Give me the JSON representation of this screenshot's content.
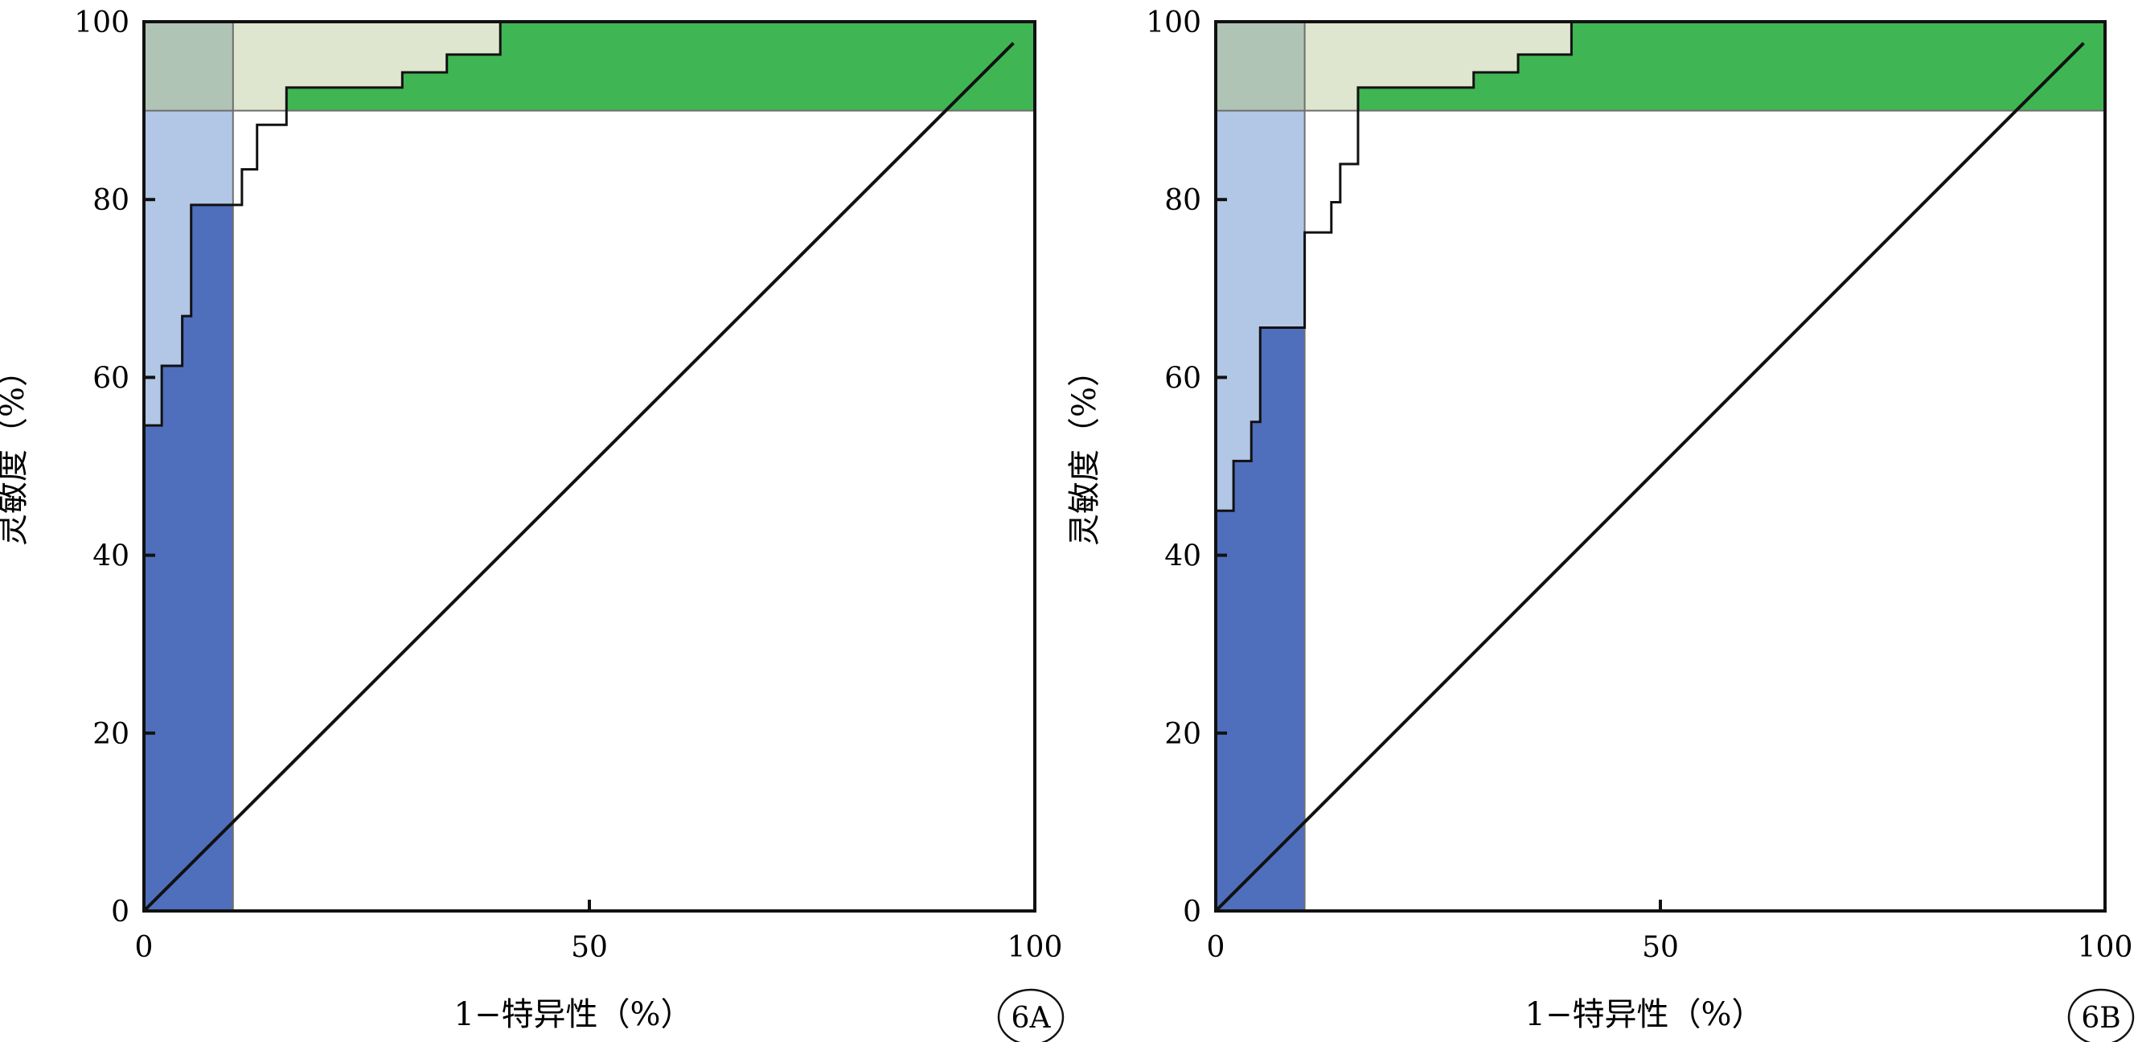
{
  "chart_data": [
    {
      "type": "line",
      "panel_label": "6A",
      "xlabel": "1−特异性（%）",
      "ylabel": "灵敏度（%）",
      "xlim": [
        0,
        100
      ],
      "ylim": [
        0,
        100
      ],
      "x_ticks": [
        0,
        50,
        100
      ],
      "y_ticks": [
        0,
        20,
        40,
        60,
        80,
        100
      ],
      "grid": false,
      "regions": [
        {
          "name": "specificity-band",
          "x_range": [
            0,
            10
          ],
          "y_range": [
            0,
            100
          ],
          "color_below": "#4f6fbc",
          "color_above": "#b2c6e6"
        },
        {
          "name": "sensitivity-band",
          "x_range": [
            0,
            100
          ],
          "y_range": [
            90,
            100
          ],
          "color_above": "#40b554",
          "color_below": "#dfe6cf"
        },
        {
          "name": "overlap",
          "x_range": [
            0,
            10
          ],
          "y_range": [
            90,
            100
          ],
          "color": "#b0c4b6"
        }
      ],
      "diagonal": {
        "x": [
          0,
          97.6
        ],
        "y": [
          0,
          97.6
        ]
      },
      "series": [
        {
          "x": [
            0,
            2,
            2,
            4.3,
            4.3,
            5.3,
            5.3,
            10,
            10,
            11,
            11,
            12.7,
            12.7,
            16,
            16,
            29,
            29,
            34,
            34,
            40,
            40,
            100
          ],
          "y": [
            54.6,
            54.6,
            61.3,
            61.3,
            66.9,
            66.9,
            79.4,
            79.4,
            79.4,
            79.4,
            83.4,
            83.4,
            88.4,
            88.4,
            92.6,
            92.6,
            94.3,
            94.3,
            96.3,
            96.3,
            100,
            100
          ]
        }
      ]
    },
    {
      "type": "line",
      "panel_label": "6B",
      "xlabel": "1−特异性（%）",
      "ylabel": "灵敏度（%）",
      "xlim": [
        0,
        100
      ],
      "ylim": [
        0,
        100
      ],
      "x_ticks": [
        0,
        50,
        100
      ],
      "y_ticks": [
        0,
        20,
        40,
        60,
        80,
        100
      ],
      "grid": false,
      "regions": [
        {
          "name": "specificity-band",
          "x_range": [
            0,
            10
          ],
          "y_range": [
            0,
            100
          ],
          "color_below": "#4f6fbc",
          "color_above": "#b2c6e6"
        },
        {
          "name": "sensitivity-band",
          "x_range": [
            0,
            100
          ],
          "y_range": [
            90,
            100
          ],
          "color_above": "#40b554",
          "color_below": "#dfe6cf"
        },
        {
          "name": "overlap",
          "x_range": [
            0,
            10
          ],
          "y_range": [
            90,
            100
          ],
          "color": "#b0c4b6"
        }
      ],
      "diagonal": {
        "x": [
          0,
          97.6
        ],
        "y": [
          0,
          97.6
        ]
      },
      "series": [
        {
          "x": [
            0,
            2,
            2,
            4,
            4,
            5,
            5,
            10,
            10,
            13,
            13,
            14,
            14,
            16,
            16,
            29,
            29,
            34,
            34,
            40,
            40,
            100
          ],
          "y": [
            45,
            45,
            50.6,
            50.6,
            55,
            55,
            65.6,
            65.6,
            76.3,
            76.3,
            79.7,
            79.7,
            84,
            84,
            92.6,
            92.6,
            94.3,
            94.3,
            96.3,
            96.3,
            100,
            100
          ]
        }
      ]
    }
  ]
}
